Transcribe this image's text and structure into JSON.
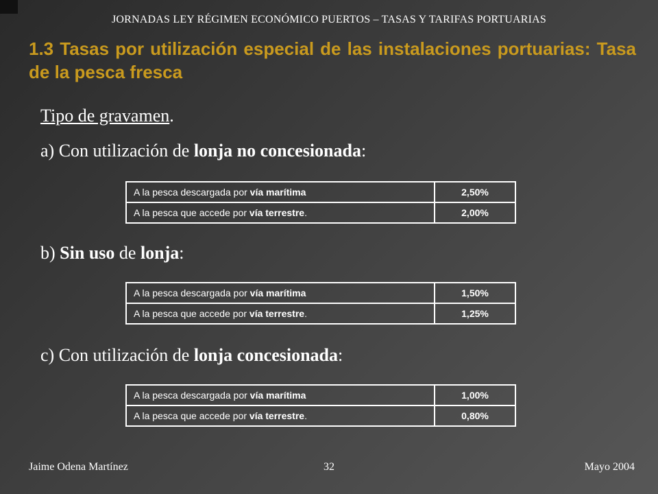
{
  "header": "JORNADAS LEY RÉGIMEN ECONÓMICO PUERTOS – TASAS Y TARIFAS PORTUARIAS",
  "title": "1.3 Tasas por utilización especial de las instalaciones portuarias: Tasa de la pesca fresca",
  "subtitle": {
    "underlined": "Tipo de gravamen",
    "suffix": "."
  },
  "sections": [
    {
      "heading": {
        "prefix": "a) Con utilización de ",
        "bold": "lonja no concesionada",
        "suffix": ":"
      },
      "rows": [
        {
          "prefix": "A la pesca descargada por ",
          "bold": "vía marítima",
          "suffix": "",
          "value": "2,50%"
        },
        {
          "prefix": "A la pesca que accede por ",
          "bold": "vía terrestre",
          "suffix": ".",
          "value": "2,00%"
        }
      ]
    },
    {
      "heading": {
        "p1": "b) ",
        "b1": "Sin uso",
        "p2": " de ",
        "b2": "lonja",
        "suffix": ":"
      },
      "rows": [
        {
          "prefix": "A la pesca descargada por ",
          "bold": "vía marítima",
          "suffix": "",
          "value": "1,50%"
        },
        {
          "prefix": "A la pesca que accede por ",
          "bold": "vía terrestre",
          "suffix": ".",
          "value": "1,25%"
        }
      ]
    },
    {
      "heading": {
        "prefix": "c) Con utilización de ",
        "bold": "lonja concesionada",
        "suffix": ":"
      },
      "rows": [
        {
          "prefix": "A la pesca descargada por ",
          "bold": "vía marítima",
          "suffix": "",
          "value": "1,00%"
        },
        {
          "prefix": "A la pesca que accede por ",
          "bold": "vía terrestre",
          "suffix": ".",
          "value": "0,80%"
        }
      ]
    }
  ],
  "footer": {
    "author": "Jaime Odena Martínez",
    "page": "32",
    "date": "Mayo 2004"
  }
}
